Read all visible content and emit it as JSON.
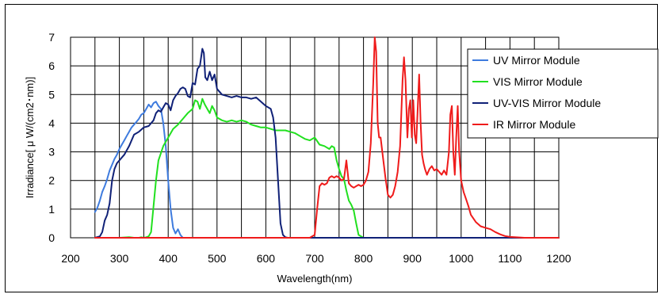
{
  "chart_data": {
    "type": "line",
    "title": "",
    "xlabel": "Wavelength(nm)",
    "ylabel": "Irradiance[ μ W/(cm2･nm)]",
    "xlim": [
      200,
      1200
    ],
    "ylim": [
      0,
      7
    ],
    "xticks": [
      200,
      300,
      400,
      500,
      600,
      700,
      800,
      900,
      1000,
      1100,
      1200
    ],
    "yticks": [
      0,
      1,
      2,
      3,
      4,
      5,
      6,
      7
    ],
    "grid": true,
    "legend_position": "top-right",
    "series": [
      {
        "name": "UV Mirror Module",
        "color": "#3e7bde",
        "x": [
          250,
          255,
          260,
          265,
          270,
          275,
          280,
          285,
          290,
          295,
          300,
          305,
          310,
          315,
          320,
          325,
          330,
          335,
          340,
          345,
          350,
          355,
          360,
          365,
          370,
          375,
          380,
          385,
          390,
          395,
          400,
          405,
          410,
          415,
          420,
          425,
          430,
          435,
          440,
          450,
          500,
          600,
          700,
          800,
          900,
          1000,
          1050
        ],
        "y": [
          0.9,
          1.05,
          1.3,
          1.6,
          1.8,
          2.05,
          2.35,
          2.55,
          2.75,
          2.9,
          3.1,
          3.25,
          3.4,
          3.55,
          3.7,
          3.85,
          3.95,
          4.05,
          4.15,
          4.3,
          4.35,
          4.5,
          4.65,
          4.55,
          4.7,
          4.75,
          4.6,
          4.5,
          4.0,
          3.2,
          2.0,
          1.0,
          0.35,
          0.15,
          0.3,
          0.1,
          0.0,
          0.0,
          0.0,
          0.0,
          0.0,
          0.0,
          0.0,
          0.0,
          0.0,
          0.0,
          0.0
        ]
      },
      {
        "name": "VIS Mirror Module",
        "color": "#21e01f",
        "x": [
          250,
          300,
          320,
          330,
          340,
          345,
          350,
          355,
          360,
          365,
          370,
          375,
          380,
          390,
          400,
          410,
          420,
          430,
          440,
          450,
          455,
          460,
          465,
          470,
          475,
          480,
          485,
          490,
          495,
          500,
          510,
          520,
          530,
          540,
          550,
          560,
          570,
          580,
          590,
          600,
          610,
          620,
          630,
          640,
          650,
          660,
          670,
          680,
          690,
          700,
          710,
          720,
          730,
          735,
          740,
          745,
          750,
          755,
          760,
          765,
          770,
          775,
          780,
          785,
          790,
          800,
          850
        ],
        "y": [
          0.0,
          0.0,
          0.02,
          0.0,
          0.0,
          0.02,
          0.0,
          0.02,
          0.05,
          0.2,
          1.1,
          2.0,
          2.7,
          3.2,
          3.5,
          3.8,
          3.95,
          4.15,
          4.35,
          4.5,
          4.8,
          4.75,
          4.5,
          4.85,
          4.65,
          4.5,
          4.35,
          4.6,
          4.45,
          4.2,
          4.1,
          4.05,
          4.1,
          4.05,
          4.1,
          4.05,
          3.95,
          3.9,
          3.85,
          3.85,
          3.8,
          3.75,
          3.75,
          3.75,
          3.7,
          3.65,
          3.55,
          3.45,
          3.4,
          3.5,
          3.25,
          3.2,
          3.1,
          3.2,
          3.15,
          2.7,
          2.4,
          2.15,
          2.05,
          1.65,
          1.3,
          1.15,
          0.95,
          0.5,
          0.1,
          0.0,
          0.0
        ]
      },
      {
        "name": "UV-VIS Mirror Module",
        "color": "#102177",
        "x": [
          250,
          260,
          265,
          270,
          275,
          280,
          285,
          290,
          295,
          300,
          310,
          320,
          330,
          340,
          350,
          360,
          370,
          375,
          380,
          385,
          390,
          395,
          400,
          405,
          410,
          415,
          420,
          425,
          430,
          435,
          440,
          445,
          450,
          455,
          460,
          465,
          470,
          473,
          476,
          480,
          485,
          490,
          495,
          500,
          505,
          510,
          520,
          530,
          540,
          550,
          560,
          570,
          580,
          590,
          600,
          610,
          615,
          620,
          625,
          630,
          635,
          640,
          645,
          650,
          700,
          800,
          900,
          1000,
          1100,
          1200
        ],
        "y": [
          0.0,
          0.05,
          0.2,
          0.6,
          0.8,
          1.2,
          2.0,
          2.4,
          2.6,
          2.7,
          2.9,
          3.2,
          3.6,
          3.7,
          3.85,
          3.9,
          4.1,
          4.35,
          4.45,
          4.4,
          4.55,
          4.7,
          4.65,
          4.45,
          4.8,
          4.95,
          5.05,
          5.2,
          5.25,
          5.2,
          4.95,
          4.9,
          5.4,
          5.35,
          5.9,
          6.0,
          6.6,
          6.45,
          5.6,
          5.5,
          5.8,
          5.5,
          5.7,
          5.2,
          5.1,
          5.0,
          4.95,
          4.9,
          4.95,
          4.9,
          4.9,
          4.85,
          4.9,
          4.75,
          4.6,
          4.5,
          4.2,
          3.5,
          2.0,
          0.5,
          0.1,
          0.02,
          0.0,
          0.0,
          0.0,
          0.0,
          0.0,
          0.0,
          0.0,
          0.0
        ]
      },
      {
        "name": "IR Mirror Module",
        "color": "#ef1b1b",
        "x": [
          250,
          500,
          690,
          700,
          705,
          710,
          715,
          720,
          725,
          730,
          735,
          740,
          745,
          750,
          755,
          760,
          765,
          770,
          775,
          780,
          785,
          790,
          795,
          800,
          805,
          810,
          815,
          820,
          823,
          826,
          829,
          832,
          835,
          840,
          845,
          850,
          855,
          860,
          865,
          870,
          875,
          880,
          883,
          886,
          890,
          893,
          896,
          899,
          902,
          905,
          908,
          911,
          914,
          917,
          920,
          923,
          926,
          930,
          935,
          940,
          945,
          950,
          955,
          960,
          965,
          970,
          975,
          978,
          981,
          984,
          987,
          990,
          993,
          996,
          1000,
          1005,
          1010,
          1015,
          1020,
          1030,
          1040,
          1050,
          1060,
          1070,
          1080,
          1090,
          1100,
          1110,
          1130,
          1200
        ],
        "y": [
          0.0,
          0.0,
          0.0,
          0.1,
          1.0,
          1.8,
          1.9,
          1.85,
          1.9,
          2.1,
          2.15,
          2.1,
          2.15,
          2.1,
          2.0,
          2.05,
          2.7,
          1.9,
          1.8,
          1.75,
          1.8,
          1.85,
          1.8,
          1.85,
          2.0,
          2.3,
          3.3,
          5.4,
          7.0,
          6.5,
          4.0,
          3.5,
          3.5,
          2.8,
          2.1,
          1.5,
          1.4,
          1.5,
          1.8,
          2.3,
          3.2,
          5.5,
          6.3,
          5.5,
          3.5,
          4.5,
          4.8,
          3.5,
          4.8,
          3.6,
          3.3,
          4.5,
          5.7,
          4.0,
          2.9,
          2.6,
          2.4,
          2.2,
          2.4,
          2.5,
          2.35,
          2.4,
          2.3,
          2.2,
          2.35,
          2.2,
          3.0,
          4.3,
          4.6,
          3.0,
          2.2,
          3.5,
          4.6,
          3.0,
          2.0,
          1.6,
          1.35,
          1.1,
          0.8,
          0.55,
          0.4,
          0.35,
          0.3,
          0.2,
          0.12,
          0.06,
          0.03,
          0.02,
          0.0,
          0.0
        ]
      }
    ]
  }
}
